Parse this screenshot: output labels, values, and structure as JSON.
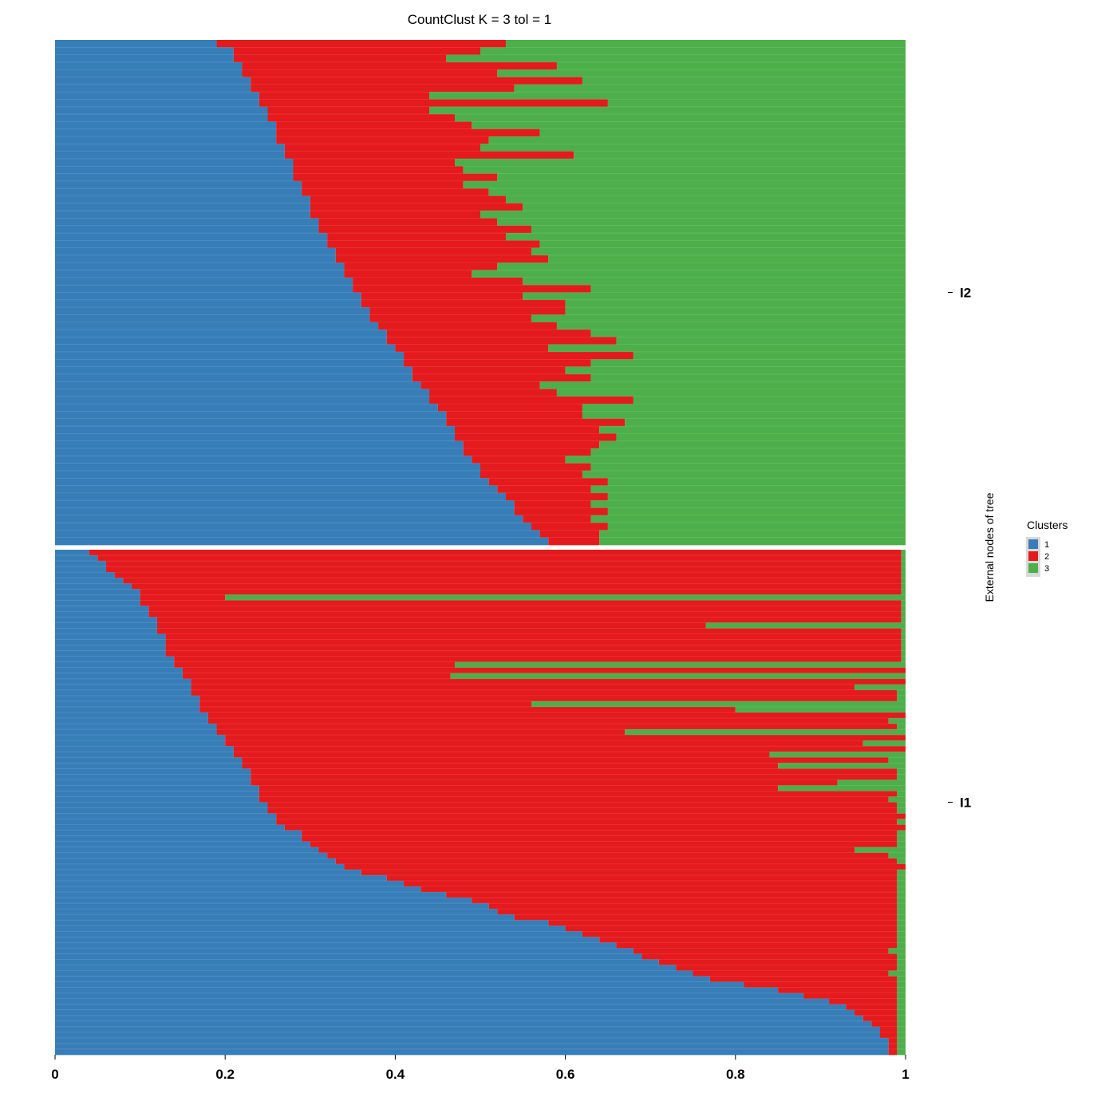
{
  "chart_data": {
    "type": "bar",
    "orientation": "horizontal",
    "stacked": true,
    "title": "CountClust K =  3 tol =  1",
    "xlabel": "",
    "ylabel": "External nodes of tree",
    "xlim": [
      0,
      1
    ],
    "xticks": [
      "0",
      "0.2",
      "0.4",
      "0.6",
      "0.8",
      "1"
    ],
    "grid": false,
    "legend": {
      "title": "Clusters",
      "position": "right",
      "entries": [
        {
          "label": "1",
          "color": "#377EB8"
        },
        {
          "label": "2",
          "color": "#E41A1C"
        },
        {
          "label": "3",
          "color": "#4DAF4A"
        }
      ]
    },
    "facets": [
      {
        "label": "I2",
        "samples": [
          [
            0.19,
            0.34,
            0.47
          ],
          [
            0.21,
            0.29,
            0.5
          ],
          [
            0.21,
            0.25,
            0.54
          ],
          [
            0.22,
            0.37,
            0.41
          ],
          [
            0.22,
            0.3,
            0.48
          ],
          [
            0.23,
            0.39,
            0.38
          ],
          [
            0.23,
            0.31,
            0.46
          ],
          [
            0.24,
            0.2,
            0.56
          ],
          [
            0.24,
            0.41,
            0.35
          ],
          [
            0.25,
            0.19,
            0.56
          ],
          [
            0.25,
            0.22,
            0.53
          ],
          [
            0.26,
            0.23,
            0.51
          ],
          [
            0.26,
            0.31,
            0.43
          ],
          [
            0.26,
            0.25,
            0.49
          ],
          [
            0.27,
            0.23,
            0.5
          ],
          [
            0.27,
            0.34,
            0.39
          ],
          [
            0.28,
            0.19,
            0.53
          ],
          [
            0.28,
            0.2,
            0.52
          ],
          [
            0.28,
            0.24,
            0.48
          ],
          [
            0.29,
            0.19,
            0.52
          ],
          [
            0.29,
            0.22,
            0.49
          ],
          [
            0.3,
            0.23,
            0.47
          ],
          [
            0.3,
            0.25,
            0.45
          ],
          [
            0.3,
            0.2,
            0.5
          ],
          [
            0.31,
            0.21,
            0.48
          ],
          [
            0.31,
            0.25,
            0.44
          ],
          [
            0.32,
            0.21,
            0.47
          ],
          [
            0.32,
            0.25,
            0.43
          ],
          [
            0.33,
            0.23,
            0.44
          ],
          [
            0.33,
            0.25,
            0.42
          ],
          [
            0.34,
            0.18,
            0.48
          ],
          [
            0.34,
            0.15,
            0.51
          ],
          [
            0.35,
            0.2,
            0.45
          ],
          [
            0.35,
            0.28,
            0.37
          ],
          [
            0.36,
            0.19,
            0.45
          ],
          [
            0.36,
            0.24,
            0.4
          ],
          [
            0.37,
            0.23,
            0.4
          ],
          [
            0.37,
            0.19,
            0.44
          ],
          [
            0.38,
            0.21,
            0.41
          ],
          [
            0.39,
            0.24,
            0.37
          ],
          [
            0.39,
            0.27,
            0.34
          ],
          [
            0.4,
            0.18,
            0.42
          ],
          [
            0.41,
            0.27,
            0.32
          ],
          [
            0.41,
            0.22,
            0.37
          ],
          [
            0.42,
            0.18,
            0.4
          ],
          [
            0.42,
            0.21,
            0.37
          ],
          [
            0.43,
            0.14,
            0.43
          ],
          [
            0.44,
            0.15,
            0.41
          ],
          [
            0.44,
            0.24,
            0.32
          ],
          [
            0.45,
            0.17,
            0.38
          ],
          [
            0.46,
            0.16,
            0.38
          ],
          [
            0.46,
            0.21,
            0.33
          ],
          [
            0.47,
            0.17,
            0.36
          ],
          [
            0.47,
            0.19,
            0.34
          ],
          [
            0.48,
            0.16,
            0.36
          ],
          [
            0.48,
            0.15,
            0.37
          ],
          [
            0.49,
            0.11,
            0.4
          ],
          [
            0.5,
            0.13,
            0.37
          ],
          [
            0.5,
            0.12,
            0.38
          ],
          [
            0.51,
            0.14,
            0.35
          ],
          [
            0.52,
            0.11,
            0.37
          ],
          [
            0.53,
            0.12,
            0.35
          ],
          [
            0.54,
            0.09,
            0.37
          ],
          [
            0.54,
            0.11,
            0.35
          ],
          [
            0.55,
            0.08,
            0.37
          ],
          [
            0.56,
            0.09,
            0.35
          ],
          [
            0.57,
            0.07,
            0.36
          ],
          [
            0.58,
            0.06,
            0.36
          ]
        ]
      },
      {
        "label": "I1",
        "samples": [
          [
            0.04,
            0.955,
            0.005
          ],
          [
            0.05,
            0.945,
            0.005
          ],
          [
            0.06,
            0.935,
            0.005
          ],
          [
            0.06,
            0.935,
            0.005
          ],
          [
            0.07,
            0.925,
            0.005
          ],
          [
            0.08,
            0.915,
            0.005
          ],
          [
            0.09,
            0.905,
            0.005
          ],
          [
            0.1,
            0.895,
            0.005
          ],
          [
            0.1,
            0.1,
            0.8
          ],
          [
            0.1,
            0.895,
            0.005
          ],
          [
            0.11,
            0.885,
            0.005
          ],
          [
            0.11,
            0.885,
            0.005
          ],
          [
            0.12,
            0.875,
            0.005
          ],
          [
            0.12,
            0.645,
            0.235
          ],
          [
            0.12,
            0.875,
            0.005
          ],
          [
            0.13,
            0.865,
            0.005
          ],
          [
            0.13,
            0.865,
            0.005
          ],
          [
            0.13,
            0.865,
            0.005
          ],
          [
            0.13,
            0.865,
            0.005
          ],
          [
            0.14,
            0.855,
            0.005
          ],
          [
            0.14,
            0.33,
            0.53
          ],
          [
            0.15,
            0.86,
            0.01
          ],
          [
            0.15,
            0.315,
            0.535
          ],
          [
            0.16,
            0.84,
            0.005
          ],
          [
            0.16,
            0.78,
            0.06
          ],
          [
            0.16,
            0.83,
            0.01
          ],
          [
            0.17,
            0.82,
            0.01
          ],
          [
            0.17,
            0.39,
            0.44
          ],
          [
            0.17,
            0.63,
            0.2
          ],
          [
            0.18,
            0.82,
            0.03
          ],
          [
            0.18,
            0.8,
            0.03
          ],
          [
            0.19,
            0.8,
            0.01
          ],
          [
            0.19,
            0.48,
            0.33
          ],
          [
            0.2,
            0.83,
            0.01
          ],
          [
            0.2,
            0.75,
            0.07
          ],
          [
            0.21,
            0.82,
            0.02
          ],
          [
            0.21,
            0.63,
            0.16
          ],
          [
            0.22,
            0.76,
            0.02
          ],
          [
            0.22,
            0.63,
            0.15
          ],
          [
            0.23,
            0.76,
            0.01
          ],
          [
            0.23,
            0.76,
            0.01
          ],
          [
            0.23,
            0.69,
            0.08
          ],
          [
            0.24,
            0.61,
            0.15
          ],
          [
            0.24,
            0.75,
            0.01
          ],
          [
            0.24,
            0.74,
            0.02
          ],
          [
            0.25,
            0.74,
            0.01
          ],
          [
            0.25,
            0.74,
            0.01
          ],
          [
            0.26,
            0.74,
            0.01
          ],
          [
            0.26,
            0.73,
            0.01
          ],
          [
            0.27,
            0.73,
            0.01
          ],
          [
            0.29,
            0.7,
            0.01
          ],
          [
            0.29,
            0.7,
            0.01
          ],
          [
            0.3,
            0.69,
            0.01
          ],
          [
            0.31,
            0.63,
            0.06
          ],
          [
            0.32,
            0.66,
            0.02
          ],
          [
            0.33,
            0.66,
            0.01
          ],
          [
            0.34,
            0.66,
            0.01
          ],
          [
            0.36,
            0.63,
            0.01
          ],
          [
            0.39,
            0.6,
            0.01
          ],
          [
            0.41,
            0.58,
            0.01
          ],
          [
            0.43,
            0.56,
            0.01
          ],
          [
            0.46,
            0.53,
            0.01
          ],
          [
            0.49,
            0.5,
            0.01
          ],
          [
            0.51,
            0.48,
            0.01
          ],
          [
            0.52,
            0.47,
            0.01
          ],
          [
            0.54,
            0.45,
            0.01
          ],
          [
            0.58,
            0.41,
            0.01
          ],
          [
            0.6,
            0.39,
            0.01
          ],
          [
            0.62,
            0.37,
            0.01
          ],
          [
            0.64,
            0.35,
            0.01
          ],
          [
            0.66,
            0.33,
            0.01
          ],
          [
            0.68,
            0.3,
            0.02
          ],
          [
            0.69,
            0.3,
            0.01
          ],
          [
            0.71,
            0.28,
            0.01
          ],
          [
            0.73,
            0.26,
            0.01
          ],
          [
            0.75,
            0.23,
            0.02
          ],
          [
            0.77,
            0.22,
            0.01
          ],
          [
            0.81,
            0.18,
            0.01
          ],
          [
            0.85,
            0.14,
            0.01
          ],
          [
            0.88,
            0.11,
            0.01
          ],
          [
            0.91,
            0.08,
            0.01
          ],
          [
            0.93,
            0.06,
            0.01
          ],
          [
            0.94,
            0.05,
            0.01
          ],
          [
            0.95,
            0.04,
            0.01
          ],
          [
            0.96,
            0.03,
            0.01
          ],
          [
            0.97,
            0.02,
            0.01
          ],
          [
            0.97,
            0.02,
            0.01
          ],
          [
            0.98,
            0.01,
            0.01
          ],
          [
            0.98,
            0.01,
            0.01
          ],
          [
            0.98,
            0.01,
            0.01
          ]
        ]
      }
    ]
  }
}
